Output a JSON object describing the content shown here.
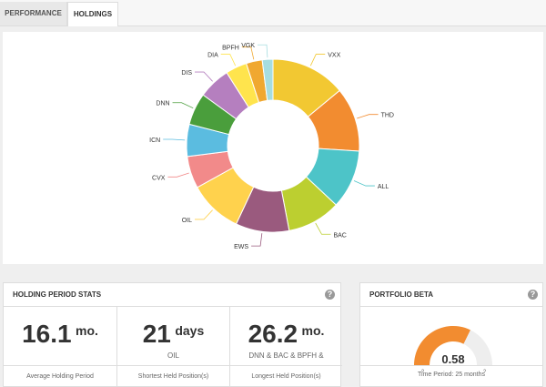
{
  "tabs": [
    "PERFORMANCE",
    "HOLDINGS"
  ],
  "chart_data": {
    "type": "pie",
    "donut": true,
    "categories": [
      "VXX",
      "THD",
      "ALL",
      "BAC",
      "EWS",
      "OIL",
      "CVX",
      "ICN",
      "DNN",
      "DIS",
      "DIA",
      "BPFH",
      "VGK"
    ],
    "values": [
      14,
      12,
      11,
      10,
      10,
      10,
      6,
      6,
      6,
      6,
      4,
      3,
      2
    ],
    "colors": [
      "#f2c832",
      "#f28c30",
      "#4dc4c8",
      "#bccf30",
      "#9a5a7e",
      "#ffd24d",
      "#f28a8a",
      "#5bbce0",
      "#4a9e3c",
      "#b57fbf",
      "#ffe44d",
      "#f0a830",
      "#a6dde0"
    ]
  },
  "help_icon": "?",
  "holding_stats": {
    "title": "HOLDING PERIOD STATS",
    "items": [
      {
        "value": "16.1",
        "unit": "mo.",
        "detail": "",
        "caption": "Average Holding Period"
      },
      {
        "value": "21",
        "unit": "days",
        "detail": "OIL",
        "caption": "Shortest Held Position(s)"
      },
      {
        "value": "26.2",
        "unit": "mo.",
        "detail": "DNN & BAC & BPFH &",
        "caption": "Longest Held Position(s)"
      }
    ]
  },
  "beta": {
    "title": "PORTFOLIO BETA",
    "type": "gauge",
    "value": 0.58,
    "min": -2,
    "max": 2,
    "color": "#f28c30",
    "track": "#eeeeee",
    "caption": "Time Period: 25 months"
  }
}
